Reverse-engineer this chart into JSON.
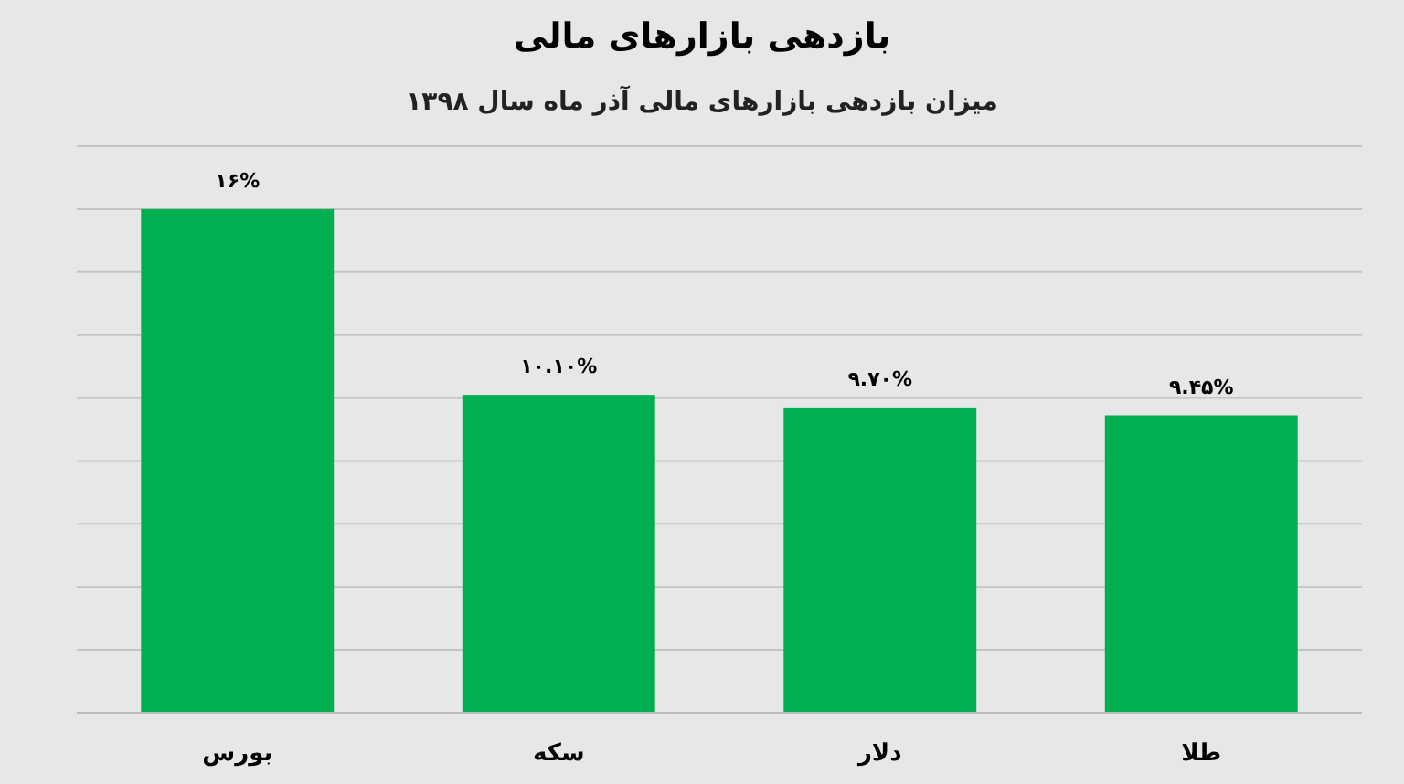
{
  "chart_data": {
    "type": "bar",
    "title": "بازدهی بازارهای مالی",
    "subtitle": "میزان بازدهی بازارهای مالی آذر ماه سال ۱۳۹۸",
    "categories": [
      "بورس",
      "سکه",
      "دلار",
      "طلا"
    ],
    "values": [
      16,
      10.1,
      9.7,
      9.45
    ],
    "value_labels": [
      "۱۶%",
      "۱۰.۱۰%",
      "۹.۷۰%",
      "۹.۴۵%"
    ],
    "color": "#00b050",
    "ylim": [
      0,
      18
    ],
    "yticks": [
      {
        "value": 0,
        "label": null
      },
      {
        "value": 2,
        "label": null
      },
      {
        "value": 4,
        "label": null
      },
      {
        "value": 6,
        "label": null
      },
      {
        "value": 8,
        "label": null
      },
      {
        "value": 10,
        "label": null
      },
      {
        "value": 12,
        "label": null
      },
      {
        "value": 14,
        "label": null
      },
      {
        "value": 16,
        "label": null
      },
      {
        "value": 18,
        "label": null
      }
    ],
    "grid": "y",
    "tick_labels": "x"
  }
}
